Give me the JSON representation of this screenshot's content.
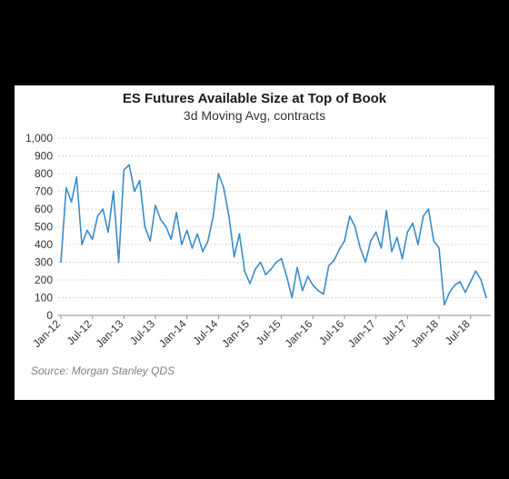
{
  "chart_data": {
    "type": "line",
    "title": "ES Futures Available Size at Top of Book",
    "subtitle": "3d Moving Avg, contracts",
    "source": "Source: Morgan Stanley QDS",
    "ylim": [
      0,
      1000
    ],
    "yticks": [
      "0",
      "100",
      "200",
      "300",
      "400",
      "500",
      "600",
      "700",
      "800",
      "900",
      "1,000"
    ],
    "xlabels": [
      "Jan-12",
      "Jul-12",
      "Jan-13",
      "Jul-13",
      "Jan-14",
      "Jul-14",
      "Jan-15",
      "Jul-15",
      "Jan-16",
      "Jul-16",
      "Jan-17",
      "Jul-17",
      "Jan-18",
      "Jul-18"
    ],
    "grid": true,
    "line_color": "#3a8cc9",
    "series": [
      {
        "x": [
          "2012-01",
          "2012-02",
          "2012-03",
          "2012-04",
          "2012-05",
          "2012-06",
          "2012-07",
          "2012-08",
          "2012-09",
          "2012-10",
          "2012-11",
          "2012-12",
          "2013-01",
          "2013-02",
          "2013-03",
          "2013-04",
          "2013-05",
          "2013-06",
          "2013-07",
          "2013-08",
          "2013-09",
          "2013-10",
          "2013-11",
          "2013-12",
          "2014-01",
          "2014-02",
          "2014-03",
          "2014-04",
          "2014-05",
          "2014-06",
          "2014-07",
          "2014-08",
          "2014-09",
          "2014-10",
          "2014-11",
          "2014-12",
          "2015-01",
          "2015-02",
          "2015-03",
          "2015-04",
          "2015-05",
          "2015-06",
          "2015-07",
          "2015-08",
          "2015-09",
          "2015-10",
          "2015-11",
          "2015-12",
          "2016-01",
          "2016-02",
          "2016-03",
          "2016-04",
          "2016-05",
          "2016-06",
          "2016-07",
          "2016-08",
          "2016-09",
          "2016-10",
          "2016-11",
          "2016-12",
          "2017-01",
          "2017-02",
          "2017-03",
          "2017-04",
          "2017-05",
          "2017-06",
          "2017-07",
          "2017-08",
          "2017-09",
          "2017-10",
          "2017-11",
          "2017-12",
          "2018-01",
          "2018-02",
          "2018-03",
          "2018-04",
          "2018-05",
          "2018-06",
          "2018-07",
          "2018-08",
          "2018-09",
          "2018-10"
        ],
        "values": [
          300,
          720,
          640,
          780,
          400,
          480,
          430,
          560,
          600,
          470,
          700,
          300,
          820,
          850,
          700,
          760,
          500,
          420,
          620,
          540,
          500,
          430,
          580,
          400,
          480,
          380,
          460,
          360,
          420,
          560,
          800,
          720,
          560,
          330,
          460,
          250,
          180,
          260,
          300,
          230,
          260,
          300,
          320,
          220,
          100,
          270,
          140,
          220,
          170,
          140,
          120,
          280,
          310,
          370,
          420,
          560,
          500,
          380,
          300,
          420,
          470,
          380,
          590,
          360,
          440,
          320,
          470,
          520,
          400,
          560,
          600,
          420,
          380,
          60,
          130,
          170,
          190,
          130,
          190,
          250,
          200,
          100
        ]
      }
    ]
  }
}
